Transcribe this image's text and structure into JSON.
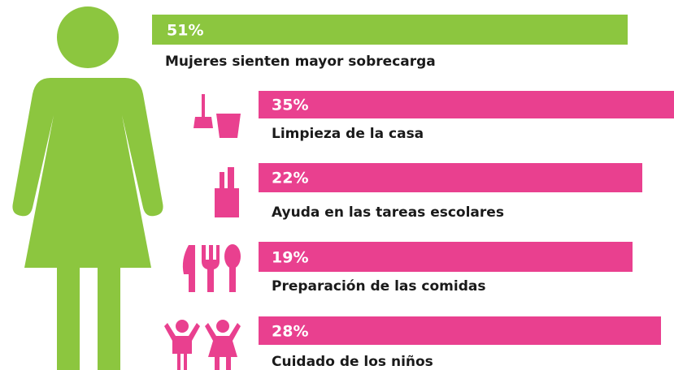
{
  "header": {
    "value": "51%",
    "label": "Mujeres sienten mayor sobrecarga"
  },
  "items": [
    {
      "value": "35%",
      "label": "Limpieza de la casa"
    },
    {
      "value": "22%",
      "label": "Ayuda en las tareas escolares"
    },
    {
      "value": "19%",
      "label": "Preparación de las comidas"
    },
    {
      "value": "28%",
      "label": "Cuidado de los niños"
    }
  ]
}
